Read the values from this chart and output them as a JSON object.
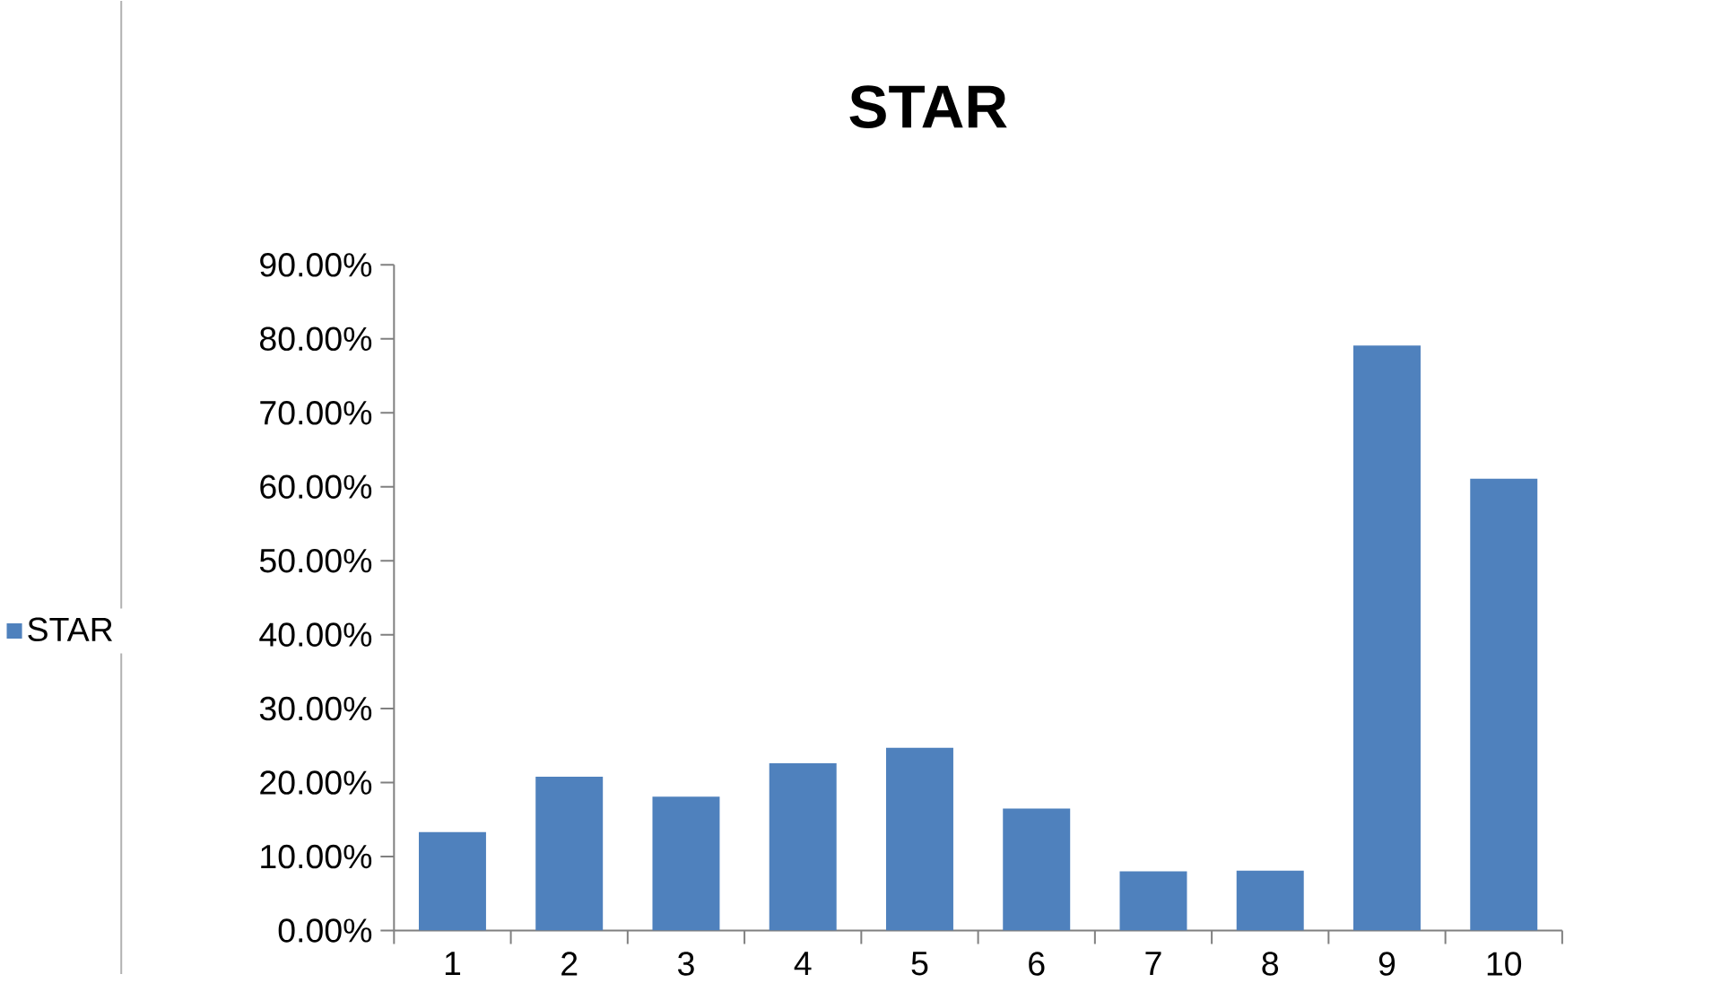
{
  "chart_data": {
    "type": "bar",
    "title": "STAR",
    "categories": [
      "1",
      "2",
      "3",
      "4",
      "5",
      "6",
      "7",
      "8",
      "9",
      "10"
    ],
    "series": [
      {
        "name": "STAR",
        "color": "#4f81bd",
        "values": [
          0.133,
          0.208,
          0.181,
          0.226,
          0.247,
          0.165,
          0.08,
          0.081,
          0.791,
          0.611
        ]
      }
    ],
    "ylim": [
      0,
      0.9
    ],
    "yticks": [
      {
        "value": 0,
        "label": "0.00%"
      },
      {
        "value": 0.1,
        "label": "10.00%"
      },
      {
        "value": 0.2,
        "label": "20.00%"
      },
      {
        "value": 0.3,
        "label": "30.00%"
      },
      {
        "value": 0.4,
        "label": "40.00%"
      },
      {
        "value": 0.5,
        "label": "50.00%"
      },
      {
        "value": 0.6,
        "label": "60.00%"
      },
      {
        "value": 0.7,
        "label": "70.00%"
      },
      {
        "value": 0.8,
        "label": "80.00%"
      },
      {
        "value": 0.9,
        "label": "90.00%"
      }
    ],
    "legend": "left",
    "grid": false
  }
}
